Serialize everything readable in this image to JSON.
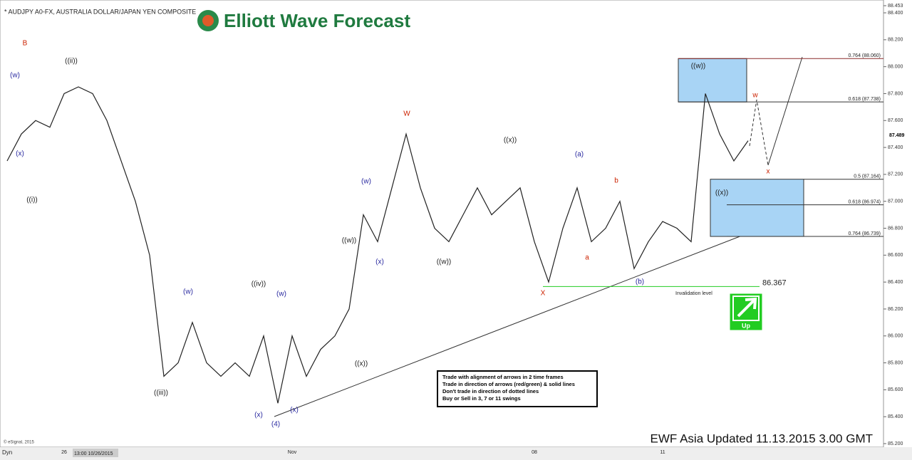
{
  "chart_data": {
    "type": "line",
    "title": "* AUDJPY A0-FX, AUSTRALIA DOLLAR/JAPAN YEN COMPOSITE",
    "brand": "Elliott Wave Forecast",
    "footer": "EWF Asia Updated 11.13.2015 3.00 GMT",
    "copyright": "© eSignal, 2015",
    "corner": "Dyn",
    "cursor_date": "13:00 10/26/2015",
    "categories": [
      null,
      null,
      null,
      null,
      "26",
      null,
      null,
      null,
      null,
      null,
      null,
      null,
      null,
      null,
      null,
      null,
      null,
      null,
      null,
      null,
      "Nov",
      null,
      null,
      null,
      null,
      null,
      null,
      null,
      null,
      null,
      null,
      null,
      null,
      null,
      null,
      null,
      null,
      "08",
      null,
      null,
      null,
      null,
      null,
      null,
      null,
      null,
      "11",
      null,
      null,
      null,
      null,
      null,
      null
    ],
    "values": [
      87.3,
      87.5,
      87.6,
      87.55,
      87.8,
      87.85,
      87.8,
      87.6,
      87.3,
      87.0,
      86.6,
      85.7,
      85.8,
      86.1,
      85.8,
      85.7,
      85.8,
      85.7,
      86.0,
      85.5,
      86.0,
      85.7,
      85.9,
      86.0,
      86.2,
      86.9,
      86.7,
      87.1,
      87.5,
      87.1,
      86.8,
      86.7,
      86.9,
      87.1,
      86.9,
      87.0,
      87.1,
      86.7,
      86.4,
      86.8,
      87.1,
      86.7,
      86.8,
      87.0,
      86.5,
      86.7,
      86.85,
      86.8,
      86.7,
      87.8,
      87.5,
      87.3,
      87.45
    ],
    "color": "#222222",
    "ylim": [
      85.2,
      88.453
    ],
    "yticks": [
      {
        "value": 85.2,
        "label": "85.200"
      },
      {
        "value": 85.4,
        "label": "85.400"
      },
      {
        "value": 85.6,
        "label": "85.600"
      },
      {
        "value": 85.8,
        "label": "85.800"
      },
      {
        "value": 86.0,
        "label": "86.000"
      },
      {
        "value": 86.2,
        "label": "86.200"
      },
      {
        "value": 86.4,
        "label": "86.400"
      },
      {
        "value": 86.6,
        "label": "86.600"
      },
      {
        "value": 86.8,
        "label": "86.800"
      },
      {
        "value": 87.0,
        "label": "87.000"
      },
      {
        "value": 87.2,
        "label": "87.200"
      },
      {
        "value": 87.4,
        "label": "87.400"
      },
      {
        "value": 87.6,
        "label": "87.600"
      },
      {
        "value": 87.8,
        "label": "87.800"
      },
      {
        "value": 88.0,
        "label": "88.000"
      },
      {
        "value": 88.2,
        "label": "88.200"
      },
      {
        "value": 88.4,
        "label": "88.400"
      },
      {
        "value": 88.453,
        "label": "88.453"
      }
    ],
    "current_price": 87.489,
    "fib_levels": [
      {
        "value": 88.06,
        "label": "0.764 (88.060)"
      },
      {
        "value": 87.738,
        "label": "0.618 (87.738)"
      },
      {
        "value": 87.164,
        "label": "0.5 (87.164)"
      },
      {
        "value": 86.974,
        "label": "0.618 (86.974)"
      },
      {
        "value": 86.739,
        "label": "0.764 (86.739)"
      }
    ],
    "invalidation": {
      "value": 86.367,
      "text": "Invalidation level"
    },
    "signal": "Up",
    "rules": [
      "Trade with alignment of arrows in 2 time frames",
      "Trade in direction of arrows (red/green) & solid lines",
      "Don't trade in direction of dotted lines",
      "Buy or Sell in 3, 7 or 11 swings"
    ],
    "annotations": [
      {
        "text": "B",
        "color": "#cc2200"
      },
      {
        "text": "(w)",
        "color": "#2a2aa0"
      },
      {
        "text": "(x)",
        "color": "#2a2aa0"
      },
      {
        "text": "((i))",
        "color": "#222222"
      },
      {
        "text": "((ii))",
        "color": "#222222"
      },
      {
        "text": "((iii))",
        "color": "#222222"
      },
      {
        "text": "(w)",
        "color": "#2a2aa0"
      },
      {
        "text": "((iv))",
        "color": "#222222"
      },
      {
        "text": "(w)",
        "color": "#2a2aa0"
      },
      {
        "text": "(x)",
        "color": "#2a2aa0"
      },
      {
        "text": "(4)",
        "color": "#2a2aa0"
      },
      {
        "text": "(x)",
        "color": "#2a2aa0"
      },
      {
        "text": "((x))",
        "color": "#222222"
      },
      {
        "text": "((w))",
        "color": "#222222"
      },
      {
        "text": "(w)",
        "color": "#2a2aa0"
      },
      {
        "text": "(x)",
        "color": "#2a2aa0"
      },
      {
        "text": "W",
        "color": "#cc2200"
      },
      {
        "text": "((w))",
        "color": "#222222"
      },
      {
        "text": "((x))",
        "color": "#222222"
      },
      {
        "text": "(a)",
        "color": "#2a2aa0"
      },
      {
        "text": "X",
        "color": "#cc2200"
      },
      {
        "text": "a",
        "color": "#cc2200"
      },
      {
        "text": "b",
        "color": "#cc2200"
      },
      {
        "text": "(b)",
        "color": "#2a2aa0"
      },
      {
        "text": "((w))",
        "color": "#222222"
      },
      {
        "text": "((x))",
        "color": "#222222"
      },
      {
        "text": "w",
        "color": "#cc2200"
      },
      {
        "text": "x",
        "color": "#cc2200"
      }
    ]
  }
}
